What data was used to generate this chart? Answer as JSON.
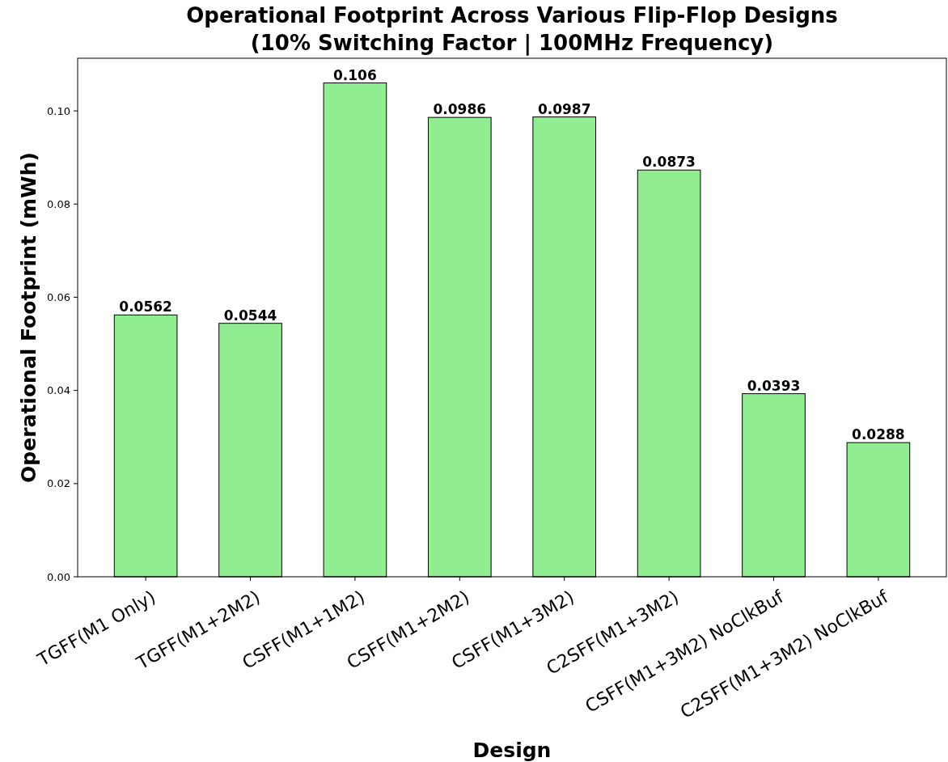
{
  "chart_data": {
    "type": "bar",
    "title": "Operational Footprint Across Various Flip-Flop Designs",
    "subtitle": "(10% Switching Factor | 100MHz Frequency)",
    "xlabel": "Design",
    "ylabel": "Operational Footprint (mWh)",
    "categories": [
      "TGFF(M1 Only)",
      "TGFF(M1+2M2)",
      "CSFF(M1+1M2)",
      "CSFF(M1+2M2)",
      "CSFF(M1+3M2)",
      "C2SFF(M1+3M2)",
      "CSFF(M1+3M2) NoClkBuf",
      "C2SFF(M1+3M2) NoClkBuf"
    ],
    "values": [
      0.0562,
      0.0544,
      0.106,
      0.0986,
      0.0987,
      0.0873,
      0.0393,
      0.0288
    ],
    "color": "#90ee90",
    "ylim": [
      0,
      0.1113
    ],
    "yticks": [
      {
        "value": 0,
        "label": "0.00"
      },
      {
        "value": 0.02,
        "label": "0.02"
      },
      {
        "value": 0.04,
        "label": "0.04"
      },
      {
        "value": 0.06,
        "label": "0.06"
      },
      {
        "value": 0.08,
        "label": "0.08"
      },
      {
        "value": 0.1,
        "label": "0.10"
      }
    ],
    "data_labels": true,
    "grid": false
  }
}
